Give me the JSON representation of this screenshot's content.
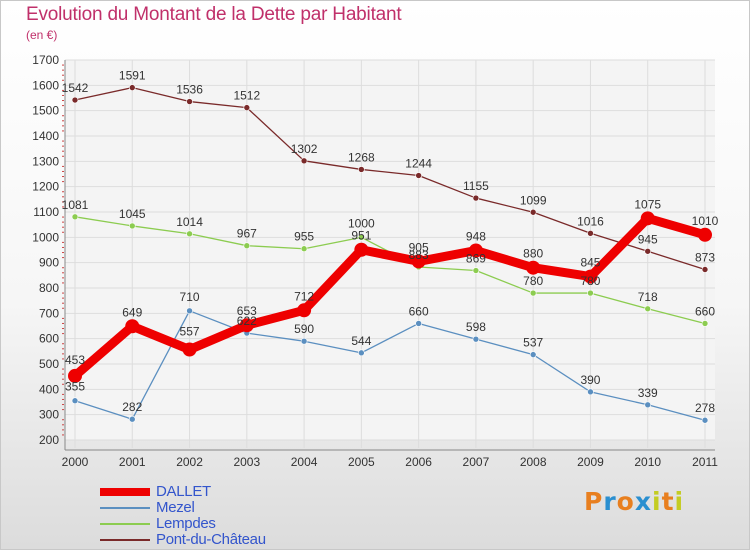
{
  "title": "Evolution du Montant de la Dette par Habitant",
  "unit_label": "(en €)",
  "logo": {
    "letters": [
      "P",
      "r",
      "o",
      "x",
      "i",
      "t",
      "i"
    ],
    "colors": [
      "#e87f1f",
      "#2a8fd0",
      "#e87f1f",
      "#2a8fd0",
      "#c4cc22",
      "#e87f1f",
      "#c4cc22"
    ]
  },
  "chart_data": {
    "type": "line",
    "x": [
      "2000",
      "2001",
      "2002",
      "2003",
      "2004",
      "2005",
      "2006",
      "2007",
      "2008",
      "2009",
      "2010",
      "2011"
    ],
    "ylim": [
      200,
      1700
    ],
    "yticks": [
      200,
      300,
      400,
      500,
      600,
      700,
      800,
      900,
      1000,
      1100,
      1200,
      1300,
      1400,
      1500,
      1600,
      1700
    ],
    "grid": true,
    "legend_position": "bottom-left",
    "series": [
      {
        "name": "Pont-du-Château",
        "color": "#7a2a2a",
        "values": [
          1542,
          1591,
          1536,
          1512,
          1302,
          1268,
          1244,
          1155,
          1099,
          1016,
          945,
          873
        ]
      },
      {
        "name": "Lempdes",
        "color": "#8ccc50",
        "values": [
          1081,
          1045,
          1014,
          967,
          955,
          1000,
          883,
          869,
          780,
          780,
          718,
          660
        ]
      },
      {
        "name": "Mezel",
        "color": "#5b8fc0",
        "values": [
          355,
          282,
          710,
          622,
          590,
          544,
          660,
          598,
          537,
          390,
          339,
          278
        ]
      },
      {
        "name": "DALLET",
        "color": "#ee0000",
        "values": [
          453,
          649,
          557,
          653,
          712,
          951,
          905,
          948,
          880,
          845,
          1075,
          1010
        ]
      }
    ]
  }
}
